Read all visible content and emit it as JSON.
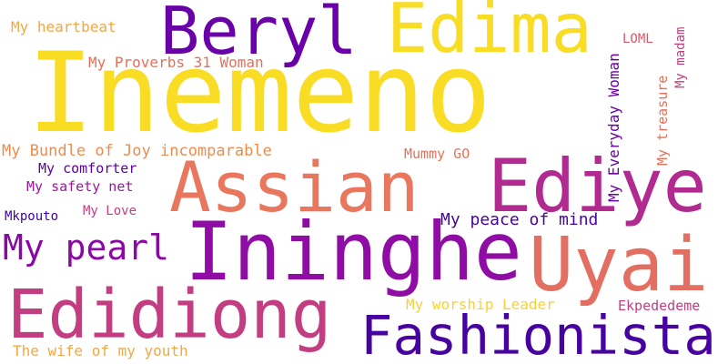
{
  "words": [
    {
      "text": "Inemeno",
      "color": "#f9dc24"
    },
    {
      "text": "Edima",
      "color": "#f9dc24"
    },
    {
      "text": "Beryl",
      "color": "#6a00a8"
    },
    {
      "text": "Assian",
      "color": "#e8775e"
    },
    {
      "text": "Ediye",
      "color": "#b12a90"
    },
    {
      "text": "Ininghe",
      "color": "#8f0da4"
    },
    {
      "text": "Uyai",
      "color": "#e36f62"
    },
    {
      "text": "Edidiong",
      "color": "#c23e81"
    },
    {
      "text": "Fashionista",
      "color": "#47039f"
    },
    {
      "text": "My pearl",
      "color": "#8a09a5"
    },
    {
      "text": "My heartbeat",
      "color": "#f2a745"
    },
    {
      "text": "My Proverbs 31 Woman",
      "color": "#e87059"
    },
    {
      "text": "My Bundle of Joy incomparable",
      "color": "#ec8c4e"
    },
    {
      "text": "My comforter",
      "color": "#5c01a6"
    },
    {
      "text": "My safety net",
      "color": "#9c179e"
    },
    {
      "text": "My Love",
      "color": "#c33d80"
    },
    {
      "text": "Mkpouto",
      "color": "#3a049a"
    },
    {
      "text": "Mummy GO",
      "color": "#e87059"
    },
    {
      "text": "My peace of mind",
      "color": "#47039f"
    },
    {
      "text": "My Everyday Woman",
      "color": "#6a00a8"
    },
    {
      "text": "LOML",
      "color": "#d9586a"
    },
    {
      "text": "My treasure",
      "color": "#e87059"
    },
    {
      "text": "My madam",
      "color": "#c33d80"
    },
    {
      "text": "My worship Leader",
      "color": "#f8d13a"
    },
    {
      "text": "Ekpededeme",
      "color": "#c23e81"
    },
    {
      "text": "The wife of my youth",
      "color": "#f2a745"
    }
  ]
}
